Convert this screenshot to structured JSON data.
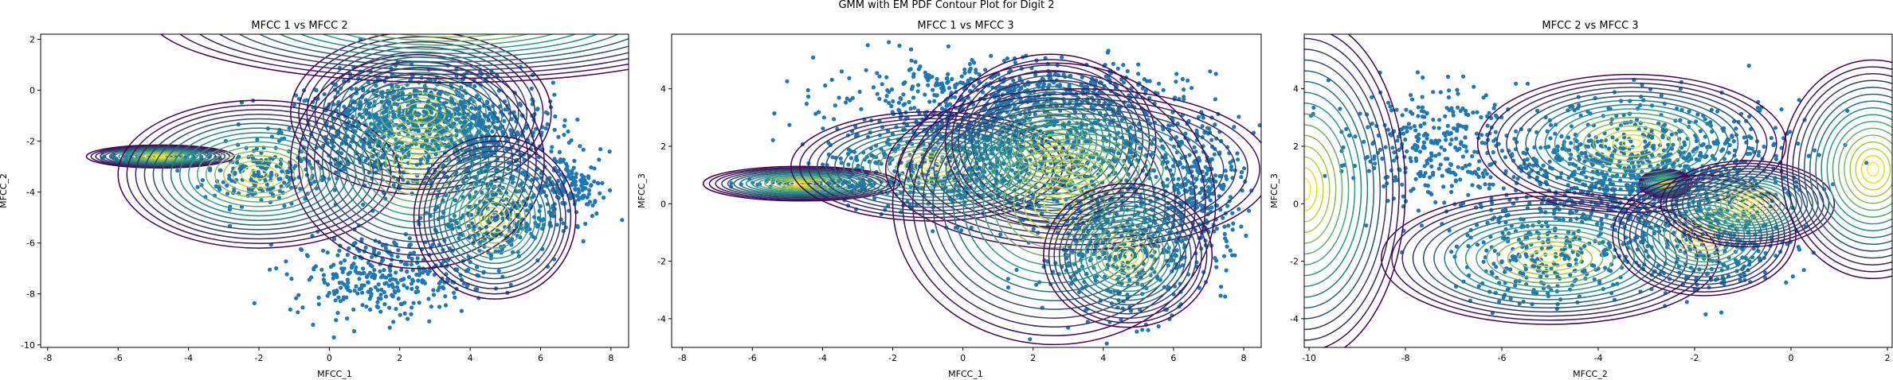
{
  "figure_title": "GMM with EM PDF Contour Plot for Digit 2",
  "colors": {
    "points": "#1f77b4",
    "contour_low": "#440154",
    "contour_mid": "#21918c",
    "contour_high": "#fde725"
  },
  "chart_data": [
    {
      "type": "scatter",
      "title": "MFCC 1 vs MFCC 2",
      "xlabel": "MFCC_1",
      "ylabel": "MFCC_2",
      "xlim": [
        -8.2,
        8.5
      ],
      "ylim": [
        -10.1,
        2.2
      ],
      "xticks": [
        -8,
        -6,
        -4,
        -2,
        0,
        2,
        4,
        6,
        8
      ],
      "yticks": [
        -10,
        -8,
        -6,
        -4,
        -2,
        0,
        2
      ],
      "overlay": "GMM PDF contours (viridis)",
      "clusters": [
        {
          "center": [
            -4.8,
            -2.6
          ],
          "spread": [
            0.8,
            0.12
          ]
        },
        {
          "center": [
            -2.0,
            -3.3
          ],
          "spread": [
            0.8,
            0.6
          ]
        },
        {
          "center": [
            1.5,
            -1.6
          ],
          "spread": [
            1.4,
            1.1
          ]
        },
        {
          "center": [
            2.6,
            -0.9
          ],
          "spread": [
            1.2,
            0.8
          ]
        },
        {
          "center": [
            4.4,
            -2.0
          ],
          "spread": [
            1.2,
            1.0
          ]
        },
        {
          "center": [
            4.7,
            -5.0
          ],
          "spread": [
            0.9,
            0.9
          ]
        },
        {
          "center": [
            6.9,
            -3.8
          ],
          "spread": [
            0.5,
            0.6
          ]
        },
        {
          "center": [
            1.5,
            -7.3
          ],
          "spread": [
            1.3,
            0.8
          ]
        }
      ],
      "components": [
        {
          "center": [
            -4.8,
            -2.6
          ],
          "radius": [
            2.1,
            0.45
          ]
        },
        {
          "center": [
            -2.0,
            -3.3
          ],
          "radius": [
            4.0,
            2.9
          ]
        },
        {
          "center": [
            2.6,
            -0.9
          ],
          "radius": [
            3.7,
            3.2
          ]
        },
        {
          "center": [
            2.5,
            -2.8
          ],
          "radius": [
            3.6,
            4.2
          ]
        },
        {
          "center": [
            4.7,
            -5.0
          ],
          "radius": [
            2.3,
            3.2
          ]
        },
        {
          "center": [
            3.4,
            2.9
          ],
          "radius": [
            8.5,
            2.6
          ]
        }
      ]
    },
    {
      "type": "scatter",
      "title": "MFCC 1 vs MFCC 3",
      "xlabel": "MFCC_1",
      "ylabel": "MFCC_3",
      "xlim": [
        -8.3,
        8.5
      ],
      "ylim": [
        -5.0,
        5.9
      ],
      "xticks": [
        -8,
        -6,
        -4,
        -2,
        0,
        2,
        4,
        6,
        8
      ],
      "yticks": [
        -4,
        -2,
        0,
        2,
        4
      ],
      "overlay": "GMM PDF contours (viridis)",
      "clusters": [
        {
          "center": [
            -4.6,
            0.7
          ],
          "spread": [
            1.0,
            0.12
          ]
        },
        {
          "center": [
            -1.0,
            1.5
          ],
          "spread": [
            1.5,
            0.8
          ]
        },
        {
          "center": [
            2.5,
            2.0
          ],
          "spread": [
            2.0,
            1.2
          ]
        },
        {
          "center": [
            4.6,
            -1.5
          ],
          "spread": [
            1.2,
            1.2
          ]
        },
        {
          "center": [
            6.8,
            0.8
          ],
          "spread": [
            0.6,
            1.2
          ]
        },
        {
          "center": [
            1.0,
            3.8
          ],
          "spread": [
            2.5,
            0.6
          ]
        }
      ],
      "components": [
        {
          "center": [
            -4.6,
            0.7
          ],
          "radius": [
            2.8,
            0.6
          ]
        },
        {
          "center": [
            -0.9,
            1.3
          ],
          "radius": [
            4.0,
            1.9
          ]
        },
        {
          "center": [
            2.5,
            2.2
          ],
          "radius": [
            3.0,
            3.0
          ]
        },
        {
          "center": [
            3.3,
            1.2
          ],
          "radius": [
            5.5,
            2.8
          ]
        },
        {
          "center": [
            2.6,
            0.0
          ],
          "radius": [
            4.6,
            4.9
          ]
        },
        {
          "center": [
            4.7,
            -1.8
          ],
          "radius": [
            2.4,
            2.5
          ]
        }
      ]
    },
    {
      "type": "scatter",
      "title": "MFCC 2 vs MFCC 3",
      "xlabel": "MFCC_2",
      "ylabel": "MFCC_3",
      "xlim": [
        -10.1,
        2.1
      ],
      "ylim": [
        -5.0,
        5.9
      ],
      "xticks": [
        -10,
        -8,
        -6,
        -4,
        -2,
        0,
        2
      ],
      "yticks": [
        -4,
        -2,
        0,
        2,
        4
      ],
      "overlay": "GMM PDF contours (viridis)",
      "clusters": [
        {
          "center": [
            -2.8,
            1.5
          ],
          "spread": [
            1.6,
            1.0
          ]
        },
        {
          "center": [
            -5.0,
            -1.9
          ],
          "spread": [
            1.0,
            0.8
          ]
        },
        {
          "center": [
            -1.5,
            -1.5
          ],
          "spread": [
            0.8,
            0.8
          ]
        },
        {
          "center": [
            -3.5,
            0.6
          ],
          "spread": [
            1.4,
            1.2
          ]
        },
        {
          "center": [
            -7.5,
            2.0
          ],
          "spread": [
            1.0,
            1.0
          ]
        }
      ],
      "components": [
        {
          "center": [
            -2.6,
            0.7
          ],
          "radius": [
            0.55,
            0.5
          ]
        },
        {
          "center": [
            -3.3,
            2.1
          ],
          "radius": [
            3.2,
            2.4
          ]
        },
        {
          "center": [
            -5.0,
            -1.9
          ],
          "radius": [
            3.5,
            2.3
          ]
        },
        {
          "center": [
            -1.8,
            -1.1
          ],
          "radius": [
            1.9,
            2.1
          ]
        },
        {
          "center": [
            -0.9,
            0.0
          ],
          "radius": [
            1.8,
            1.5
          ]
        },
        {
          "center": [
            1.7,
            1.2
          ],
          "radius": [
            1.9,
            3.8
          ]
        },
        {
          "center": [
            -10.1,
            0.5
          ],
          "radius": [
            2.1,
            6.0
          ]
        }
      ]
    }
  ]
}
